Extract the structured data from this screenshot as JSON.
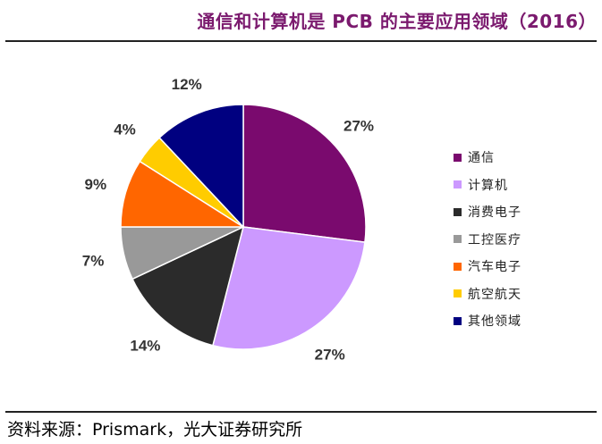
{
  "header": {
    "title": "通信和计算机是 PCB 的主要应用领域（2016）"
  },
  "footer": {
    "source": "资料来源：Prismark，光大证券研究所"
  },
  "chart_data": {
    "type": "pie",
    "categories": [
      "通信",
      "计算机",
      "消费电子",
      "工控医疗",
      "汽车电子",
      "航空航天",
      "其他领域"
    ],
    "values": [
      27,
      27,
      14,
      7,
      9,
      4,
      12
    ],
    "labels": [
      "27%",
      "27%",
      "14%",
      "7%",
      "9%",
      "4%",
      "12%"
    ],
    "colors": [
      "#7a0a6e",
      "#cc99ff",
      "#2b2b2b",
      "#999999",
      "#ff6600",
      "#ffcc00",
      "#000080"
    ],
    "legend_position": "right"
  }
}
